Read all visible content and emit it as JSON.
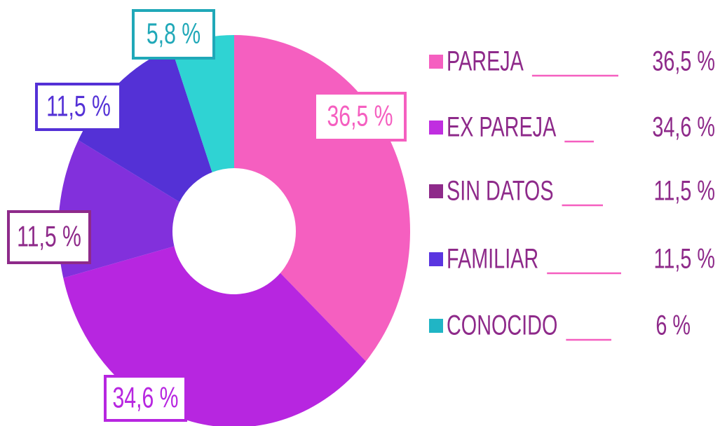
{
  "chart_data": {
    "type": "pie",
    "donut": true,
    "categories": [
      "PAREJA",
      "EX PAREJA",
      "SIN DATOS",
      "FAMILIAR",
      "CONOCIDO"
    ],
    "values": [
      36.5,
      34.6,
      11.5,
      11.5,
      5.8
    ],
    "value_labels": [
      "36,5 %",
      "34,6 %",
      "11,5 %",
      "11,5 %",
      "5,8 %"
    ],
    "legend_value_labels": [
      "36,5 %",
      "34,6 %",
      "11,5 %",
      "11,5 %",
      "6 %"
    ],
    "colors": [
      "#f55fc0",
      "#b726e0",
      "#8230dc",
      "#5431d6",
      "#2fd3d3"
    ],
    "legend_colors": [
      "#f55fc0",
      "#c02ee0",
      "#8e2a8a",
      "#5a35e0",
      "#20b5c5"
    ],
    "label_colors": [
      "#f55fc0",
      "#b726e0",
      "#8e2a8a",
      "#5431d6",
      "#20a8b8"
    ]
  }
}
